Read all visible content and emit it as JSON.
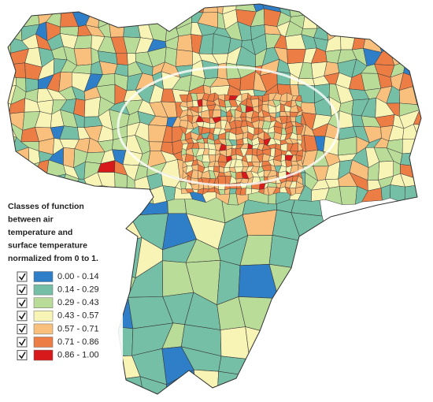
{
  "legend": {
    "title_lines": [
      "Classes of function",
      "between air",
      "temperature and",
      "surface temperature",
      "normalized from 0 to 1."
    ],
    "items": [
      {
        "label": "0.00 - 0.14",
        "color": "#2e7fc8",
        "checked": true
      },
      {
        "label": "0.14 - 0.29",
        "color": "#74bfa6",
        "checked": true
      },
      {
        "label": "0.29 - 0.43",
        "color": "#b9dc98",
        "checked": true
      },
      {
        "label": "0.43 - 0.57",
        "color": "#f7f4b5",
        "checked": true
      },
      {
        "label": "0.57 - 0.71",
        "color": "#f8c07c",
        "checked": true
      },
      {
        "label": "0.71 - 0.86",
        "color": "#ec7d45",
        "checked": true
      },
      {
        "label": "0.86 - 1.00",
        "color": "#d7191c",
        "checked": true
      }
    ]
  }
}
